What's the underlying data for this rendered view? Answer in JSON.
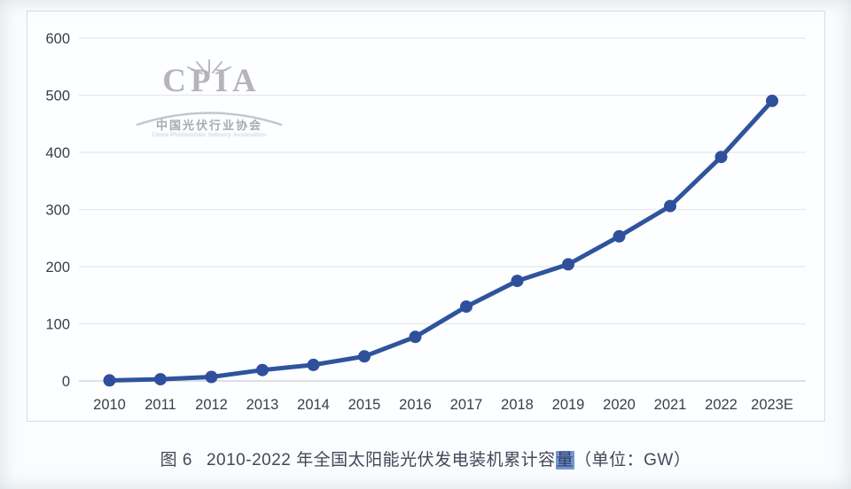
{
  "logo": {
    "acronym": "CPIA",
    "name_cn": "中国光伏行业协会",
    "name_en": "China Photovoltaic Industry Association"
  },
  "caption": {
    "prefix": "图 6",
    "body": "2010-2022 年全国太阳能光伏发电装机累计容",
    "highlight": "量",
    "suffix": "（单位：GW）"
  },
  "chart_data": {
    "type": "line",
    "title": "2010-2022 年全国太阳能光伏发电装机累计容量（单位：GW）",
    "categories": [
      "2010",
      "2011",
      "2012",
      "2013",
      "2014",
      "2015",
      "2016",
      "2017",
      "2018",
      "2019",
      "2020",
      "2021",
      "2022",
      "2023E"
    ],
    "values": [
      1,
      3,
      7,
      19,
      28,
      43,
      77,
      130,
      175,
      204,
      253,
      306,
      392,
      490
    ],
    "xlabel": "",
    "ylabel": "",
    "unit": "GW",
    "ylim": [
      0,
      600
    ],
    "yticks": [
      0,
      100,
      200,
      300,
      400,
      500,
      600
    ],
    "grid": true,
    "legend": false,
    "line_color": "#2e549c",
    "marker_color": "#2f4f9d",
    "grid_color": "#e6e8ec",
    "zero_line_color": "#c9ced4"
  }
}
